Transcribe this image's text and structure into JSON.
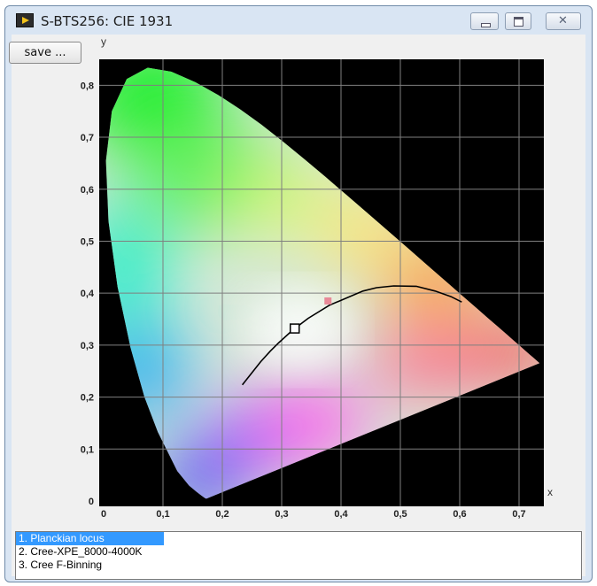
{
  "window": {
    "title": "S-BTS256: CIE 1931",
    "icon": "labview-run-icon",
    "controls": [
      "minimize-icon",
      "maximize-icon",
      "close-icon"
    ]
  },
  "toolbar": {
    "save_label": "save ..."
  },
  "chart_data": {
    "type": "scatter",
    "title": "",
    "xlabel": "x",
    "ylabel": "y",
    "xlim": [
      0,
      0.75
    ],
    "ylim": [
      0,
      0.85
    ],
    "x_ticks": [
      "0",
      "0,1",
      "0,2",
      "0,3",
      "0,4",
      "0,5",
      "0,6",
      "0,7"
    ],
    "y_ticks": [
      "0",
      "0,1",
      "0,2",
      "0,3",
      "0,4",
      "0,5",
      "0,6",
      "0,7",
      "0,8"
    ],
    "grid": true,
    "background": "#000000",
    "spectral_locus": [
      [
        0.1741,
        0.005
      ],
      [
        0.1733,
        0.0048
      ],
      [
        0.1726,
        0.0048
      ],
      [
        0.1714,
        0.0051
      ],
      [
        0.1689,
        0.0069
      ],
      [
        0.1644,
        0.0109
      ],
      [
        0.1566,
        0.0177
      ],
      [
        0.144,
        0.0297
      ],
      [
        0.1241,
        0.0578
      ],
      [
        0.0913,
        0.1327
      ],
      [
        0.0687,
        0.2007
      ],
      [
        0.0454,
        0.295
      ],
      [
        0.0235,
        0.4127
      ],
      [
        0.0082,
        0.5384
      ],
      [
        0.0039,
        0.6548
      ],
      [
        0.0139,
        0.7502
      ],
      [
        0.0389,
        0.812
      ],
      [
        0.0743,
        0.8338
      ],
      [
        0.1142,
        0.8262
      ],
      [
        0.1547,
        0.8059
      ],
      [
        0.1929,
        0.7816
      ],
      [
        0.2296,
        0.7543
      ],
      [
        0.2658,
        0.7243
      ],
      [
        0.3016,
        0.6923
      ],
      [
        0.3373,
        0.6589
      ],
      [
        0.3731,
        0.6245
      ],
      [
        0.4087,
        0.5896
      ],
      [
        0.4441,
        0.5547
      ],
      [
        0.4788,
        0.5202
      ],
      [
        0.5125,
        0.4866
      ],
      [
        0.5448,
        0.4544
      ],
      [
        0.5752,
        0.4242
      ],
      [
        0.6029,
        0.3965
      ],
      [
        0.627,
        0.3725
      ],
      [
        0.6482,
        0.3514
      ],
      [
        0.6658,
        0.334
      ],
      [
        0.6801,
        0.3197
      ],
      [
        0.6915,
        0.3083
      ],
      [
        0.7006,
        0.2993
      ],
      [
        0.7079,
        0.292
      ],
      [
        0.714,
        0.2859
      ],
      [
        0.719,
        0.2809
      ],
      [
        0.723,
        0.277
      ],
      [
        0.726,
        0.274
      ],
      [
        0.7347,
        0.2653
      ]
    ],
    "series": [
      {
        "name": "1. Planckian locus",
        "type": "line",
        "color": "#000000",
        "x": [
          0.2337,
          0.2647,
          0.2806,
          0.2952,
          0.3135,
          0.3221,
          0.3324,
          0.3447,
          0.3805,
          0.4369,
          0.4599,
          0.4888,
          0.5267,
          0.5586,
          0.5857,
          0.6034
        ],
        "y": [
          0.2235,
          0.2681,
          0.2883,
          0.3048,
          0.3236,
          0.3318,
          0.3408,
          0.3516,
          0.3768,
          0.4041,
          0.4106,
          0.414,
          0.4132,
          0.404,
          0.3932,
          0.3829
        ]
      },
      {
        "name": "2. Cree-XPE_8000-4000K",
        "type": "scatter",
        "marker": "hollow-square",
        "color": "#000000",
        "x": [
          0.322
        ],
        "y": [
          0.332
        ]
      },
      {
        "name": "3. Cree F-Binning",
        "type": "scatter",
        "marker": "filled-square",
        "color": "#e88a98",
        "x": [
          0.378
        ],
        "y": [
          0.385
        ]
      }
    ],
    "legend_placement": "bottom",
    "selected_legend_index": 0
  },
  "legend": {
    "items": [
      "1. Planckian locus",
      "2. Cree-XPE_8000-4000K",
      "3. Cree F-Binning"
    ]
  }
}
